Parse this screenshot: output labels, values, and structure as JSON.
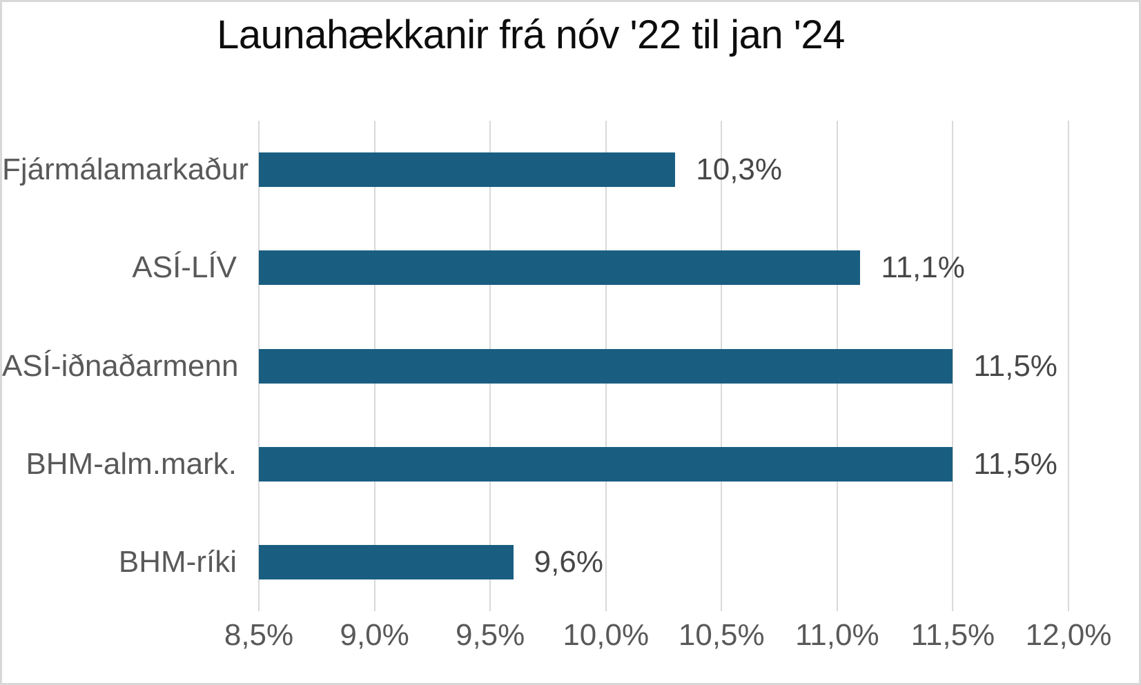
{
  "chart_data": {
    "type": "bar",
    "orientation": "horizontal",
    "title": "Launahækkanir frá nóv '22 til jan '24",
    "categories": [
      "Fjármálamarkaður",
      "ASÍ-LÍV",
      "ASÍ-iðnaðarmenn",
      "BHM-alm.mark.",
      "BHM-ríki"
    ],
    "values": [
      10.3,
      11.1,
      11.5,
      11.5,
      9.6
    ],
    "data_labels": [
      "10,3%",
      "11,1%",
      "11,5%",
      "11,5%",
      "9,6%"
    ],
    "x_ticks": [
      8.5,
      9.0,
      9.5,
      10.0,
      10.5,
      11.0,
      11.5,
      12.0
    ],
    "x_tick_labels": [
      "8,5%",
      "9,0%",
      "9,5%",
      "10,0%",
      "10,5%",
      "11,0%",
      "11,5%",
      "12,0%"
    ],
    "xlim": [
      8.5,
      12.0
    ],
    "xlabel": "",
    "ylabel": "",
    "grid": "vertical",
    "legend": "none",
    "colors": {
      "bar": "#195e81",
      "gridline": "#d9d9d9",
      "title_text": "#0d0d0d",
      "category_text": "#595959",
      "value_text": "#474747",
      "tick_text": "#595959",
      "border": "#d8d8d8",
      "background": "#ffffff"
    }
  }
}
